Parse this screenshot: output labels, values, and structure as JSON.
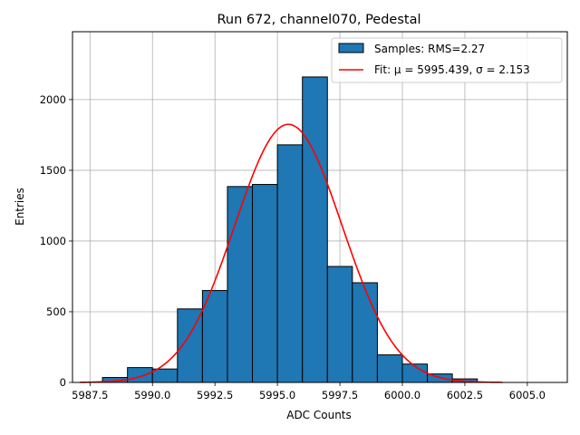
{
  "chart_data": {
    "type": "bar",
    "title": "Run 672, channel070, Pedestal",
    "xlabel": "ADC Counts",
    "ylabel": "Entries",
    "xlim": [
      5986.8,
      6006.6
    ],
    "ylim": [
      0,
      2480
    ],
    "xticks": [
      5987.5,
      5990.0,
      5992.5,
      5995.0,
      5997.5,
      6000.0,
      6002.5,
      6005.0
    ],
    "xtick_labels": [
      "5987.5",
      "5990.0",
      "5992.5",
      "5995.0",
      "5997.5",
      "6000.0",
      "6002.5",
      "6005.0"
    ],
    "yticks": [
      0,
      500,
      1000,
      1500,
      2000
    ],
    "ytick_labels": [
      "0",
      "500",
      "1000",
      "1500",
      "2000"
    ],
    "grid": true,
    "legend_position": "top-right",
    "bin_edges": [
      5988,
      5989,
      5990,
      5991,
      5992,
      5993,
      5994,
      5995,
      5996,
      5997,
      5998,
      5999,
      6000,
      6001,
      6002
    ],
    "series": [
      {
        "name": "Samples: RMS=2.27",
        "kind": "histogram",
        "color": "#1f77b4",
        "values": [
          35,
          105,
          95,
          520,
          650,
          1385,
          1400,
          1680,
          2160,
          820,
          705,
          195,
          130,
          60,
          25
        ]
      },
      {
        "name": "Fit: μ = 5995.439, σ = 2.153",
        "kind": "gaussian-fit",
        "color": "#ff0000",
        "mu": 5995.439,
        "sigma": 2.153,
        "amplitude": 1825,
        "x_range": [
          5987.1,
          6004.0
        ]
      }
    ]
  }
}
